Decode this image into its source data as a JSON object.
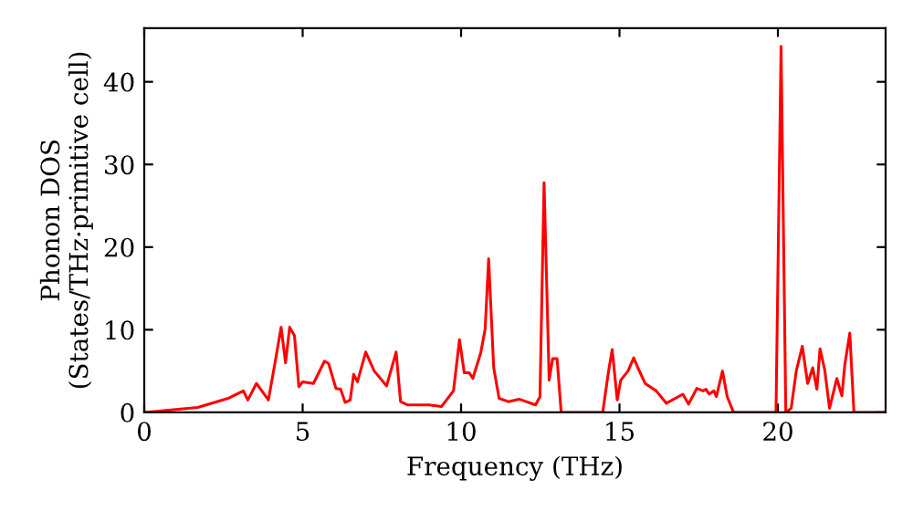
{
  "chart_data": {
    "type": "line",
    "xlabel": "Frequency (THz)",
    "ylabel": "Phonon DOS\n(States/THz·primitive cell)",
    "xlim": [
      0,
      23.4
    ],
    "ylim": [
      0,
      46.5
    ],
    "xticks": [
      0,
      5,
      10,
      15,
      20
    ],
    "yticks": [
      0,
      10,
      20,
      30,
      40
    ],
    "grid": false,
    "legend": false,
    "series": [
      {
        "color": "#ff0000",
        "x": [
          0,
          1.69,
          2.65,
          3.13,
          3.27,
          3.54,
          3.92,
          4.15,
          4.32,
          4.46,
          4.59,
          4.74,
          4.88,
          5.0,
          5.34,
          5.69,
          5.82,
          6.05,
          6.2,
          6.34,
          6.5,
          6.61,
          6.73,
          6.99,
          7.26,
          7.65,
          7.95,
          8.09,
          8.32,
          8.99,
          9.38,
          9.76,
          9.95,
          10.1,
          10.26,
          10.37,
          10.62,
          10.76,
          10.87,
          11.03,
          11.2,
          11.49,
          11.83,
          12.35,
          12.49,
          12.62,
          12.78,
          12.89,
          13.03,
          13.16,
          14.47,
          14.66,
          14.77,
          14.93,
          15.04,
          15.27,
          15.45,
          15.58,
          15.81,
          16.16,
          16.48,
          17.0,
          17.18,
          17.44,
          17.64,
          17.73,
          17.83,
          17.98,
          18.06,
          18.25,
          18.4,
          18.6,
          19.94,
          20.1,
          20.25,
          20.42,
          20.58,
          20.77,
          20.94,
          21.1,
          21.23,
          21.33,
          21.48,
          21.63,
          21.86,
          22.02,
          22.11,
          22.27,
          22.4,
          23.4
        ],
        "values": [
          0,
          0.6,
          1.7,
          2.6,
          1.5,
          3.5,
          1.5,
          6.5,
          10.3,
          6.0,
          10.3,
          9.3,
          3.1,
          3.7,
          3.5,
          6.2,
          5.9,
          2.9,
          2.8,
          1.2,
          1.5,
          4.6,
          3.7,
          7.3,
          5.0,
          3.2,
          7.3,
          1.3,
          0.9,
          0.9,
          0.7,
          2.6,
          8.8,
          4.8,
          4.8,
          4.1,
          7.2,
          10.1,
          18.6,
          5.4,
          1.7,
          1.3,
          1.6,
          0.9,
          1.9,
          27.8,
          3.9,
          6.5,
          6.5,
          0,
          0,
          5.1,
          7.6,
          1.5,
          3.9,
          5.0,
          6.6,
          5.4,
          3.5,
          2.6,
          1.1,
          2.2,
          1.0,
          2.9,
          2.6,
          2.8,
          2.2,
          2.6,
          1.9,
          5.0,
          1.9,
          0,
          0,
          44.3,
          0,
          0.5,
          5.0,
          8.0,
          3.5,
          5.4,
          2.8,
          7.7,
          5.1,
          0.5,
          4.1,
          2.0,
          5.7,
          9.6,
          0,
          0
        ]
      }
    ]
  }
}
